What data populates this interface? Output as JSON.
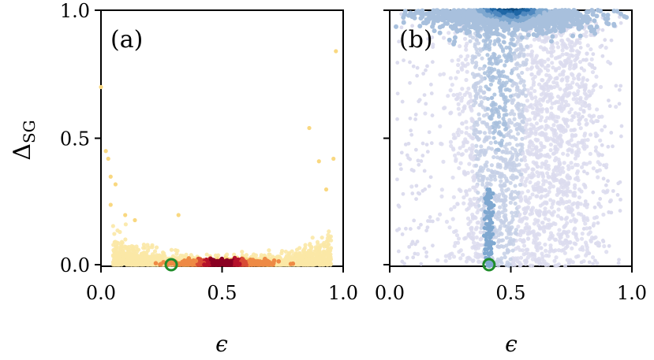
{
  "chart_data": [
    {
      "panel_label": "(a)",
      "type": "scatter",
      "density_colormap": [
        "#fbe8a6",
        "#f9d880",
        "#f5b65f",
        "#ee8a45",
        "#d84b35",
        "#b5122b",
        "#8a0022"
      ],
      "xlabel": "ϵ",
      "ylabel_base": "Δ",
      "ylabel_sub": "SG",
      "xlim": [
        0.0,
        1.0
      ],
      "ylim": [
        0.0,
        1.0
      ],
      "xticks": [
        "0.0",
        "0.5",
        "1.0"
      ],
      "yticks": [
        "0.0",
        "0.5",
        "1.0"
      ],
      "distribution": {
        "description_points": [
          {
            "x": 0.0,
            "y": 0.7
          },
          {
            "x": 0.02,
            "y": 0.45
          },
          {
            "x": 0.03,
            "y": 0.42
          },
          {
            "x": 0.04,
            "y": 0.35
          },
          {
            "x": 0.04,
            "y": 0.24
          },
          {
            "x": 0.06,
            "y": 0.32
          },
          {
            "x": 0.1,
            "y": 0.2
          },
          {
            "x": 0.14,
            "y": 0.18
          },
          {
            "x": 0.32,
            "y": 0.2
          },
          {
            "x": 0.86,
            "y": 0.54
          },
          {
            "x": 0.9,
            "y": 0.41
          },
          {
            "x": 0.97,
            "y": 0.84
          },
          {
            "x": 0.96,
            "y": 0.42
          },
          {
            "x": 0.93,
            "y": 0.3
          }
        ],
        "core_center_x": 0.5,
        "core_width": 0.22,
        "core_y": 0.0
      },
      "marked_point": {
        "x": 0.29,
        "y": 0.0,
        "color": "#1f8c2a"
      }
    },
    {
      "panel_label": "(b)",
      "type": "scatter",
      "density_colormap": [
        "#dcdcee",
        "#c6d0e6",
        "#a8c0dd",
        "#7fa8d0",
        "#4f88bf",
        "#1f67a6",
        "#0b4a80"
      ],
      "xlabel": "ϵ",
      "xlim": [
        0.0,
        1.0
      ],
      "ylim": [
        0.0,
        1.0
      ],
      "xticks": [
        "0.0",
        "0.5",
        "1.0"
      ],
      "yticks": [
        "",
        "",
        ""
      ],
      "distribution": {
        "top_band_center_x": 0.5,
        "top_band_y": 0.97,
        "column_center_x": 0.45,
        "column_width": 0.22
      },
      "marked_point": {
        "x": 0.41,
        "y": 0.0,
        "color": "#1f8c2a"
      }
    }
  ]
}
